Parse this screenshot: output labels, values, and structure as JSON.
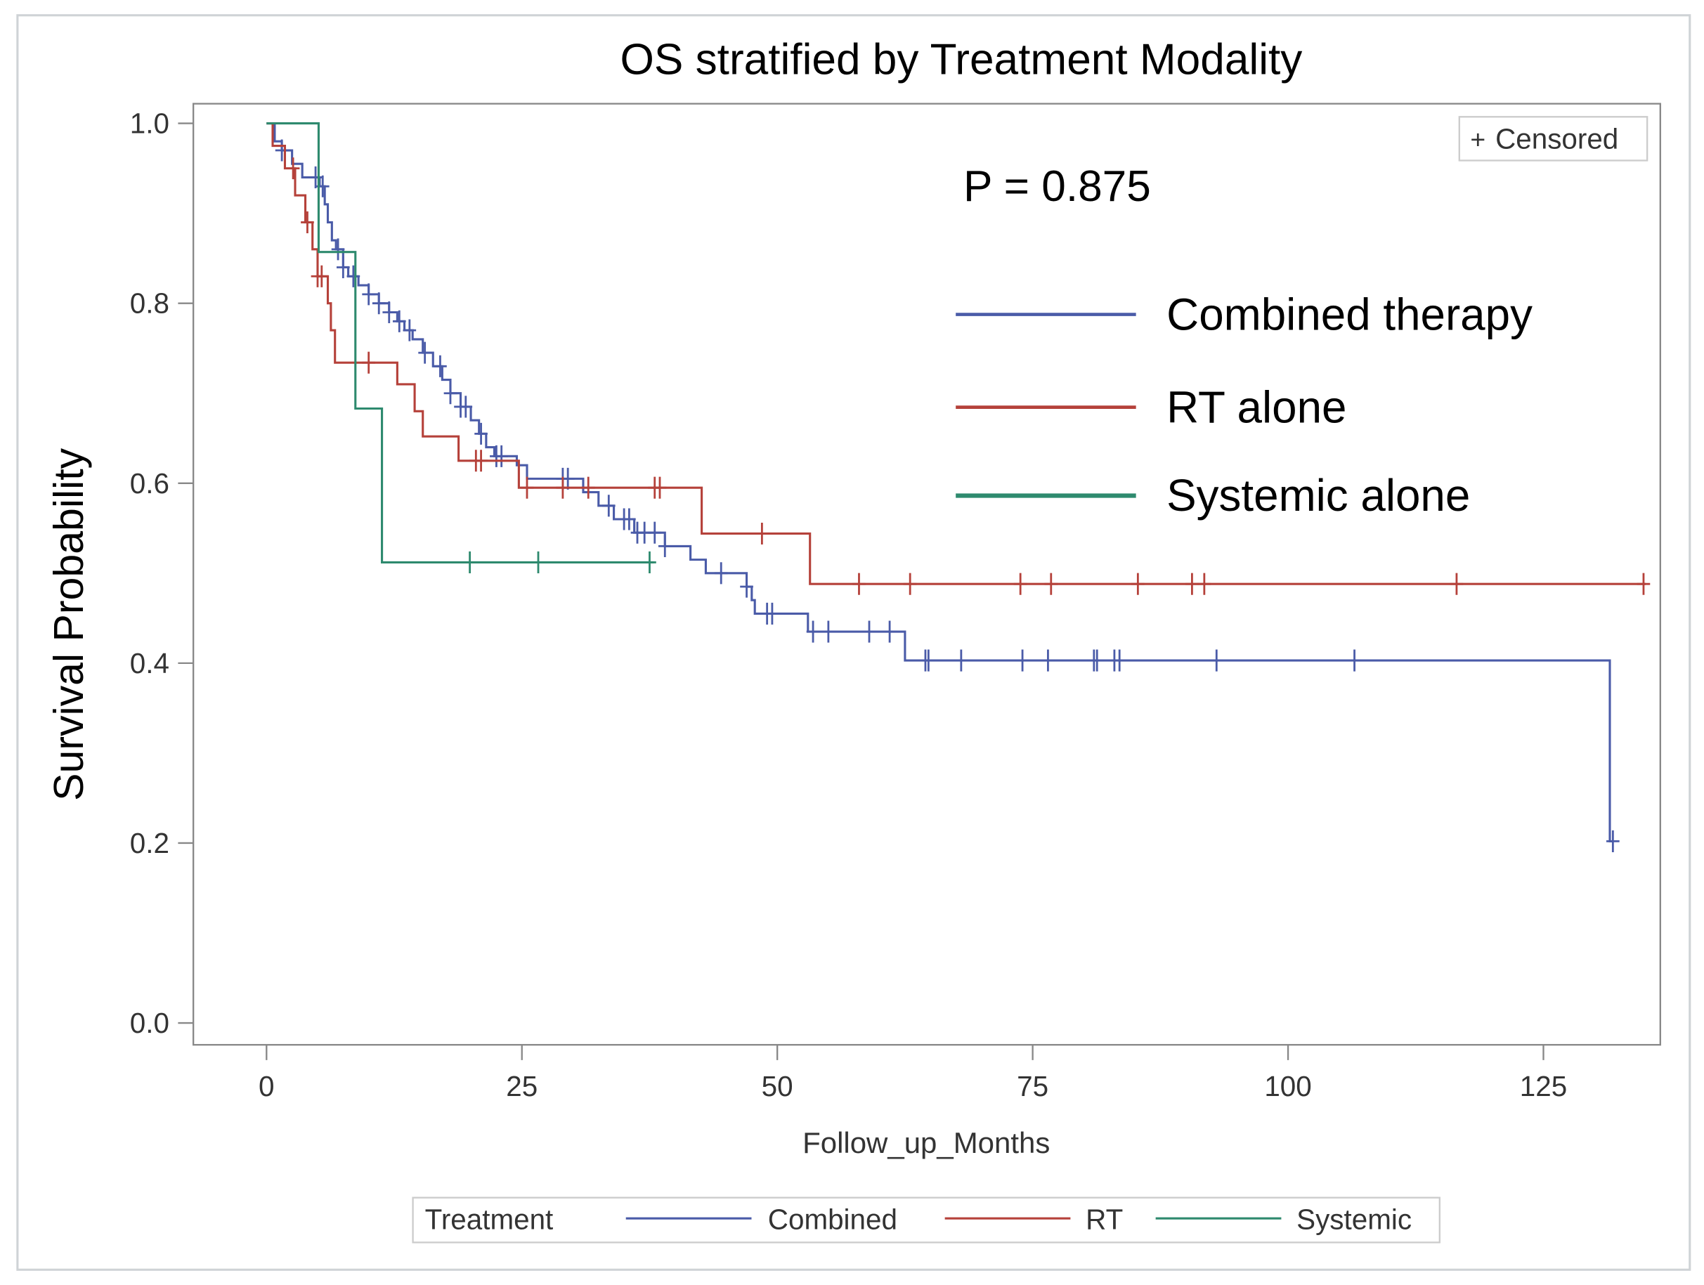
{
  "chart_data": {
    "type": "line",
    "subtype": "kaplan-meier step",
    "title": "OS stratified by Treatment Modality",
    "xlabel": "Follow_up_Months",
    "ylabel": "Survival Probability",
    "xlim": [
      -7,
      137
    ],
    "ylim": [
      -0.025,
      1.02
    ],
    "xticks": [
      "0",
      "25",
      "50",
      "75",
      "100",
      "125"
    ],
    "xtick_values": [
      0,
      25,
      50,
      75,
      100,
      125
    ],
    "yticks": [
      "0.0",
      "0.2",
      "0.4",
      "0.6",
      "0.8",
      "1.0"
    ],
    "ytick_values": [
      0,
      0.2,
      0.4,
      0.6,
      0.8,
      1.0
    ],
    "annotation": "P = 0.875",
    "censored_label": "Censored",
    "censor_symbol": "+",
    "inner_legend": [
      "Combined therapy",
      "RT alone",
      "Systemic alone"
    ],
    "legend": {
      "title": "Treatment",
      "entries": [
        "Combined",
        "RT",
        "Systemic"
      ],
      "position": "bottom"
    },
    "series": [
      {
        "name": "Combined",
        "color": "#4a5ba8",
        "end": 131.8,
        "steps": [
          [
            0,
            1.0
          ],
          [
            0.8,
            0.98
          ],
          [
            1.5,
            0.97
          ],
          [
            2.5,
            0.955
          ],
          [
            3.5,
            0.94
          ],
          [
            5.2,
            0.93
          ],
          [
            5.7,
            0.91
          ],
          [
            6,
            0.89
          ],
          [
            6.4,
            0.87
          ],
          [
            6.8,
            0.86
          ],
          [
            7.5,
            0.84
          ],
          [
            8,
            0.83
          ],
          [
            9,
            0.82
          ],
          [
            10,
            0.81
          ],
          [
            11,
            0.8
          ],
          [
            12,
            0.79
          ],
          [
            12.8,
            0.78
          ],
          [
            13.5,
            0.77
          ],
          [
            14.3,
            0.76
          ],
          [
            15.3,
            0.745
          ],
          [
            16.3,
            0.73
          ],
          [
            17.2,
            0.715
          ],
          [
            18,
            0.7
          ],
          [
            19,
            0.685
          ],
          [
            20,
            0.67
          ],
          [
            20.8,
            0.655
          ],
          [
            21.5,
            0.64
          ],
          [
            22.3,
            0.63
          ],
          [
            24.5,
            0.62
          ],
          [
            25.5,
            0.605
          ],
          [
            31,
            0.59
          ],
          [
            32.5,
            0.575
          ],
          [
            34,
            0.56
          ],
          [
            36,
            0.545
          ],
          [
            39,
            0.53
          ],
          [
            41.5,
            0.515
          ],
          [
            43,
            0.5
          ],
          [
            47,
            0.485
          ],
          [
            47.5,
            0.47
          ],
          [
            47.8,
            0.455
          ],
          [
            53,
            0.435
          ],
          [
            62.5,
            0.403
          ],
          [
            131.5,
            0.202
          ]
        ],
        "censored": [
          1.5,
          4.8,
          5.5,
          7,
          7.5,
          8.5,
          10,
          11,
          12,
          13,
          14,
          15.5,
          17,
          18,
          19,
          19.5,
          21,
          22.5,
          23,
          29,
          29.5,
          33.5,
          35,
          35.5,
          36.3,
          37,
          38,
          39,
          44.5,
          47,
          49,
          49.5,
          53.5,
          55,
          59,
          61,
          64.5,
          64.8,
          68,
          74,
          76.5,
          81,
          81.3,
          83,
          83.5,
          93,
          106.5,
          131.8
        ]
      },
      {
        "name": "RT",
        "color": "#b5413a",
        "end": 135,
        "steps": [
          [
            0,
            1.0
          ],
          [
            0.6,
            0.975
          ],
          [
            1.8,
            0.95
          ],
          [
            2.8,
            0.92
          ],
          [
            3.8,
            0.89
          ],
          [
            4.5,
            0.86
          ],
          [
            5,
            0.83
          ],
          [
            6,
            0.8
          ],
          [
            6.3,
            0.77
          ],
          [
            6.7,
            0.734
          ],
          [
            12.8,
            0.71
          ],
          [
            14.5,
            0.68
          ],
          [
            15.3,
            0.652
          ],
          [
            18.8,
            0.625
          ],
          [
            24.7,
            0.595
          ],
          [
            42.6,
            0.544
          ],
          [
            53.2,
            0.488
          ]
        ],
        "censored": [
          2.6,
          4,
          5,
          5.4,
          10,
          20.5,
          21,
          25.5,
          29,
          31.5,
          38,
          38.5,
          48.5,
          58,
          63,
          73.8,
          76.8,
          85.3,
          90.6,
          91.8,
          116.5,
          134.8
        ]
      },
      {
        "name": "Systemic",
        "color": "#2e8a6e",
        "end": 37.9,
        "steps": [
          [
            0,
            1.0
          ],
          [
            5.1,
            0.857
          ],
          [
            8.7,
            0.683
          ],
          [
            11.3,
            0.512
          ]
        ],
        "censored": [
          19.9,
          26.6,
          37.5
        ]
      }
    ]
  }
}
